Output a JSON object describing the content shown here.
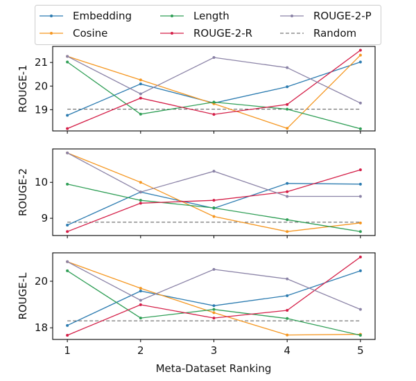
{
  "chart_data": {
    "type": "line",
    "xlabel": "Meta-Dataset Ranking",
    "x": [
      1,
      2,
      3,
      4,
      5
    ],
    "x_tick_labels": [
      "1",
      "2",
      "3",
      "4",
      "5"
    ],
    "legend": {
      "placement": "top-center",
      "columns": 3,
      "entries": [
        {
          "name": "Embedding",
          "style": "solid-marker"
        },
        {
          "name": "Cosine",
          "style": "solid-marker"
        },
        {
          "name": "Length",
          "style": "solid-marker"
        },
        {
          "name": "ROUGE-2-R",
          "style": "solid-marker"
        },
        {
          "name": "ROUGE-2-P",
          "style": "solid-marker"
        },
        {
          "name": "Random",
          "style": "dashed"
        }
      ]
    },
    "colors": {
      "Embedding": "#2b7bb0",
      "Cosine": "#f5961f",
      "Length": "#2e9e55",
      "ROUGE-2-R": "#d41e47",
      "ROUGE-2-P": "#8a82a6",
      "Random": "#555555"
    },
    "panels": [
      {
        "ylabel": "ROUGE-1",
        "ylim": [
          18.1,
          21.68
        ],
        "yticks": [
          19,
          20,
          21
        ],
        "grid": false,
        "series": [
          {
            "name": "Embedding",
            "values": [
              18.76,
              20.09,
              19.28,
              19.97,
              21.02
            ]
          },
          {
            "name": "Cosine",
            "values": [
              21.26,
              20.26,
              19.25,
              18.21,
              21.31
            ]
          },
          {
            "name": "Length",
            "values": [
              21.02,
              18.81,
              19.32,
              19.02,
              18.19
            ]
          },
          {
            "name": "ROUGE-2-R",
            "values": [
              18.2,
              19.49,
              18.8,
              19.22,
              21.52
            ]
          },
          {
            "name": "ROUGE-2-P",
            "values": [
              21.26,
              19.67,
              21.21,
              20.78,
              19.28
            ]
          }
        ],
        "random": 19.02
      },
      {
        "ylabel": "ROUGE-2",
        "ylim": [
          8.52,
          10.93
        ],
        "yticks": [
          9,
          10
        ],
        "grid": false,
        "series": [
          {
            "name": "Embedding",
            "values": [
              8.81,
              9.73,
              9.28,
              9.97,
              9.95
            ]
          },
          {
            "name": "Cosine",
            "values": [
              10.82,
              10.0,
              9.05,
              8.63,
              8.87
            ]
          },
          {
            "name": "Length",
            "values": [
              9.95,
              9.5,
              9.29,
              8.96,
              8.63
            ]
          },
          {
            "name": "ROUGE-2-R",
            "values": [
              8.63,
              9.42,
              9.5,
              9.74,
              10.35
            ]
          },
          {
            "name": "ROUGE-2-P",
            "values": [
              10.82,
              9.73,
              10.31,
              9.61,
              9.61
            ]
          }
        ],
        "random": 8.89
      },
      {
        "ylabel": "ROUGE-L",
        "ylim": [
          17.5,
          21.22
        ],
        "yticks": [
          18,
          20
        ],
        "grid": false,
        "series": [
          {
            "name": "Embedding",
            "values": [
              18.1,
              19.58,
              18.95,
              19.38,
              20.45
            ]
          },
          {
            "name": "Cosine",
            "values": [
              20.84,
              19.7,
              18.65,
              17.69,
              17.72
            ]
          },
          {
            "name": "Length",
            "values": [
              20.45,
              18.42,
              18.79,
              18.4,
              17.68
            ]
          },
          {
            "name": "ROUGE-2-R",
            "values": [
              17.68,
              18.99,
              18.42,
              18.75,
              21.04
            ]
          },
          {
            "name": "ROUGE-2-P",
            "values": [
              20.84,
              19.18,
              20.51,
              20.1,
              18.79
            ]
          }
        ],
        "random": 18.3
      }
    ]
  }
}
